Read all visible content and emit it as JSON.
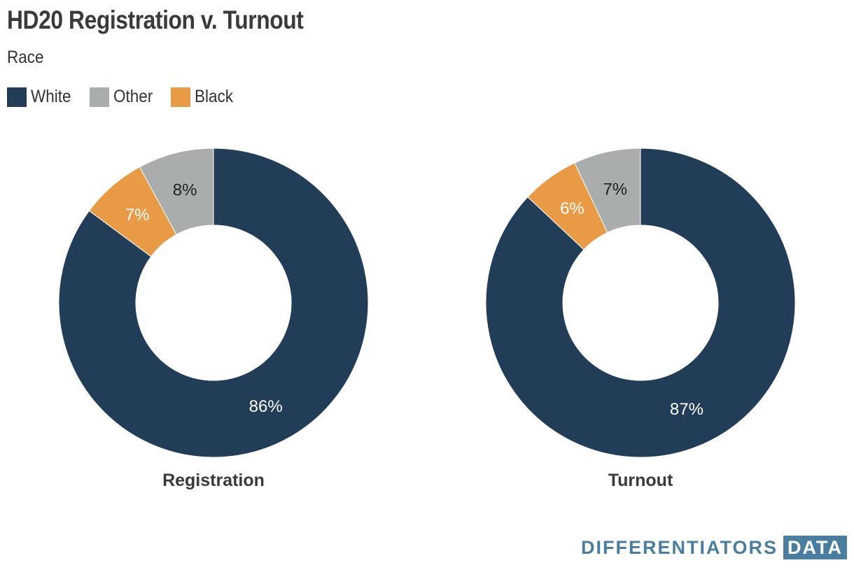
{
  "header": {
    "title": "HD20 Registration v. Turnout",
    "subtitle": "Race"
  },
  "legend": [
    {
      "label": "White",
      "color": "#223d57"
    },
    {
      "label": "Other",
      "color": "#a9adac"
    },
    {
      "label": "Black",
      "color": "#e89a45"
    }
  ],
  "chart_data": [
    {
      "type": "pie",
      "donut": true,
      "title": "Registration",
      "categories": [
        "White",
        "Black",
        "Other"
      ],
      "values": [
        86,
        7,
        8
      ],
      "labels": [
        "86%",
        "7%",
        "8%"
      ],
      "colors": [
        "#223d57",
        "#e89a45",
        "#a9adac"
      ]
    },
    {
      "type": "pie",
      "donut": true,
      "title": "Turnout",
      "categories": [
        "White",
        "Black",
        "Other"
      ],
      "values": [
        87,
        6,
        7
      ],
      "labels": [
        "87%",
        "6%",
        "7%"
      ],
      "colors": [
        "#223d57",
        "#e89a45",
        "#a9adac"
      ]
    }
  ],
  "branding": {
    "word": "DIFFERENTIATORS",
    "box": "DATA"
  }
}
